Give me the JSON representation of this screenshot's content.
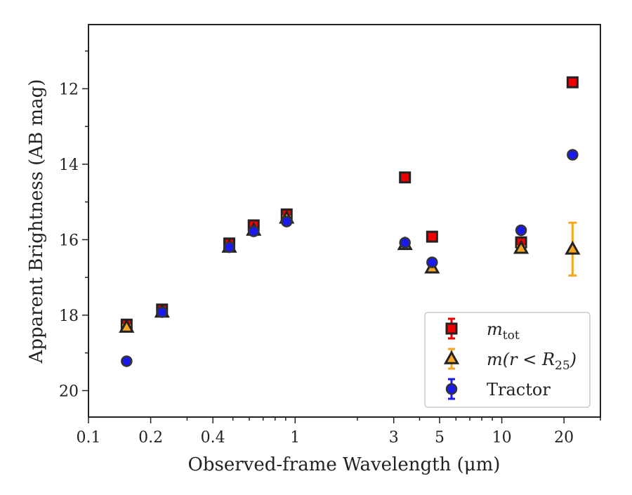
{
  "chart_data": {
    "type": "scatter",
    "title": "",
    "xlabel": "Observed-frame Wavelength (μm)",
    "ylabel": "Apparent Brightness (AB mag)",
    "x_scale": "log",
    "xlim": [
      0.1,
      30
    ],
    "ylim": [
      20.7,
      10.3
    ],
    "y_inverted": true,
    "grid": false,
    "legend_position": "lower-right",
    "x_ticks": [
      {
        "value": 0.1,
        "label": "0.1"
      },
      {
        "value": 0.2,
        "label": "0.2"
      },
      {
        "value": 0.4,
        "label": "0.4"
      },
      {
        "value": 1,
        "label": "1"
      },
      {
        "value": 3,
        "label": "3"
      },
      {
        "value": 5,
        "label": "5"
      },
      {
        "value": 10,
        "label": "10"
      },
      {
        "value": 20,
        "label": "20"
      }
    ],
    "y_ticks": [
      {
        "value": 12,
        "label": "12"
      },
      {
        "value": 14,
        "label": "14"
      },
      {
        "value": 16,
        "label": "16"
      },
      {
        "value": 18,
        "label": "18"
      },
      {
        "value": 20,
        "label": "20"
      }
    ],
    "series": [
      {
        "key": "mtot",
        "legend_main": "m",
        "legend_sub": "tot",
        "marker": "square",
        "color": "#ee0000",
        "edge_color": "#222222",
        "errorbar_color": "#ee0000",
        "points": [
          {
            "x": 0.153,
            "y": 18.25,
            "err": 0.08
          },
          {
            "x": 0.227,
            "y": 17.85,
            "err": 0.08
          },
          {
            "x": 0.48,
            "y": 16.1,
            "err": 0.08
          },
          {
            "x": 0.63,
            "y": 15.62,
            "err": 0.08
          },
          {
            "x": 0.91,
            "y": 15.33,
            "err": 0.08
          },
          {
            "x": 3.4,
            "y": 14.35,
            "err": 0.05
          },
          {
            "x": 4.6,
            "y": 15.92,
            "err": 0.05
          },
          {
            "x": 12.4,
            "y": 16.07,
            "err": 0.05
          },
          {
            "x": 22.0,
            "y": 11.83,
            "err": 0.05
          }
        ]
      },
      {
        "key": "mr25",
        "legend_main": "m(r < R",
        "legend_sub": "25",
        "legend_tail": ")",
        "marker": "triangle",
        "color": "#f5a623",
        "edge_color": "#222222",
        "errorbar_color": "#f5a623",
        "points": [
          {
            "x": 0.153,
            "y": 18.32,
            "err": 0.05
          },
          {
            "x": 0.227,
            "y": 17.92,
            "err": 0.05
          },
          {
            "x": 0.48,
            "y": 16.2,
            "err": 0.05
          },
          {
            "x": 0.63,
            "y": 15.75,
            "err": 0.05
          },
          {
            "x": 0.91,
            "y": 15.43,
            "err": 0.05
          },
          {
            "x": 3.4,
            "y": 16.13,
            "err": 0.05
          },
          {
            "x": 4.6,
            "y": 16.75,
            "err": 0.05
          },
          {
            "x": 12.4,
            "y": 16.23,
            "err": 0.05
          },
          {
            "x": 22.0,
            "y": 16.25,
            "err": 0.7
          }
        ]
      },
      {
        "key": "tractor",
        "legend_main": "Tractor",
        "marker": "circle",
        "color": "#1a1aee",
        "edge_color": "#333333",
        "errorbar_color": "#1a1aee",
        "points": [
          {
            "x": 0.153,
            "y": 19.22,
            "err": 0.05
          },
          {
            "x": 0.227,
            "y": 17.92,
            "err": 0.05
          },
          {
            "x": 0.48,
            "y": 16.2,
            "err": 0.05
          },
          {
            "x": 0.63,
            "y": 15.78,
            "err": 0.05
          },
          {
            "x": 0.91,
            "y": 15.52,
            "err": 0.05
          },
          {
            "x": 3.4,
            "y": 16.08,
            "err": 0.05
          },
          {
            "x": 4.6,
            "y": 16.6,
            "err": 0.05
          },
          {
            "x": 12.4,
            "y": 15.75,
            "err": 0.05
          },
          {
            "x": 22.0,
            "y": 13.75,
            "err": 0.05
          }
        ]
      }
    ]
  }
}
